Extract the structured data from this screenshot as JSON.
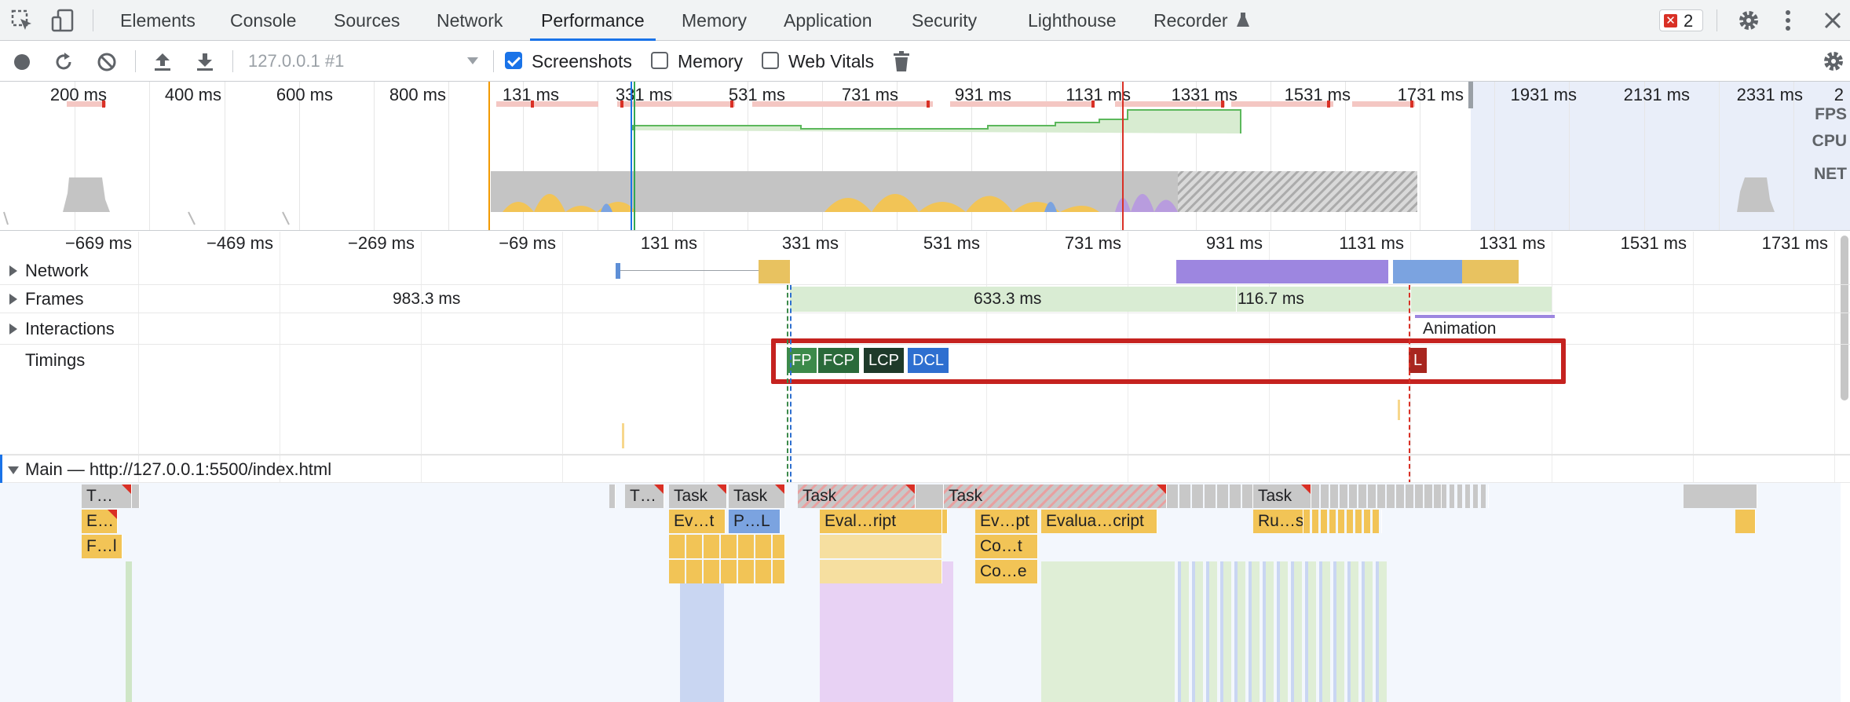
{
  "devtools_tabs": [
    "Elements",
    "Console",
    "Sources",
    "Network",
    "Performance",
    "Memory",
    "Application",
    "Security",
    "Lighthouse",
    "Recorder"
  ],
  "active_tab": "Performance",
  "error_count": "2",
  "toolbar": {
    "profile_select": "127.0.0.1 #1",
    "screenshots_label": "Screenshots",
    "screenshots_checked": true,
    "memory_label": "Memory",
    "memory_checked": false,
    "webvitals_label": "Web Vitals",
    "webvitals_checked": false
  },
  "overview": {
    "labels": [
      "200 ms",
      "400 ms",
      "600 ms",
      "800 ms",
      "131 ms",
      "331 ms",
      "531 ms",
      "731 ms",
      "931 ms",
      "1131 ms",
      "1331 ms",
      "1531 ms",
      "1731 ms",
      "1931 ms",
      "2131 ms",
      "2331 ms",
      "2"
    ],
    "side_labels": [
      "FPS",
      "CPU",
      "NET"
    ]
  },
  "ruler": {
    "labels": [
      "−669 ms",
      "−469 ms",
      "−269 ms",
      "−69 ms",
      "131 ms",
      "331 ms",
      "531 ms",
      "731 ms",
      "931 ms",
      "1131 ms",
      "1331 ms",
      "1531 ms",
      "1731 ms"
    ]
  },
  "tracks": {
    "network": "Network",
    "frames": "Frames",
    "interactions": "Interactions",
    "timings": "Timings",
    "main": "Main — http://127.0.0.1:5500/index.html"
  },
  "frames": {
    "f1": "983.3 ms",
    "f2": "633.3 ms",
    "f3": "116.7 ms"
  },
  "interactions": {
    "animation": "Animation"
  },
  "timings": {
    "fp": "FP",
    "fcp": "FCP",
    "lcp": "LCP",
    "dcl": "DCL",
    "l": "L"
  },
  "flame": {
    "row1": [
      "T…",
      "T…",
      "Task",
      "Task",
      "Task",
      "Task",
      "Task"
    ],
    "row2": [
      "E…",
      "Ev…t",
      "P…L",
      "Eval…ript",
      "Ev…pt",
      "Evalua…cript",
      "Ru…s"
    ],
    "row3": [
      "F…l",
      "Co…t"
    ],
    "row4": [
      "Co…e"
    ]
  },
  "colors": {
    "accent": "#1a73e8",
    "highlight_box": "#c5221f",
    "fp": "#3c8a4a",
    "fcp": "#2a6a3a",
    "lcp": "#1e3a2a",
    "dcl": "#2e6fd0",
    "load": "#a8261f"
  }
}
